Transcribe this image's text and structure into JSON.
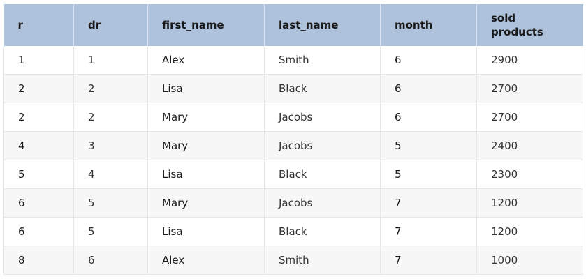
{
  "table": {
    "headers": [
      "r",
      "dr",
      "first_name",
      "last_name",
      "month",
      "sold\nproducts"
    ],
    "rows": [
      [
        "1",
        "1",
        "Alex",
        "Smith",
        "6",
        "2900"
      ],
      [
        "2",
        "2",
        "Lisa",
        "Black",
        "6",
        "2700"
      ],
      [
        "2",
        "2",
        "Mary",
        "Jacobs",
        "6",
        "2700"
      ],
      [
        "4",
        "3",
        "Mary",
        "Jacobs",
        "5",
        "2400"
      ],
      [
        "5",
        "4",
        "Lisa",
        "Black",
        "5",
        "2300"
      ],
      [
        "6",
        "5",
        "Mary",
        "Jacobs",
        "7",
        "1200"
      ],
      [
        "6",
        "5",
        "Lisa",
        "Black",
        "7",
        "1200"
      ],
      [
        "8",
        "6",
        "Alex",
        "Smith",
        "7",
        "1000"
      ]
    ]
  },
  "colors": {
    "header_bg": "#aec2db",
    "row_alt_bg": "#f7f7f7",
    "border": "#e6e6e6"
  }
}
